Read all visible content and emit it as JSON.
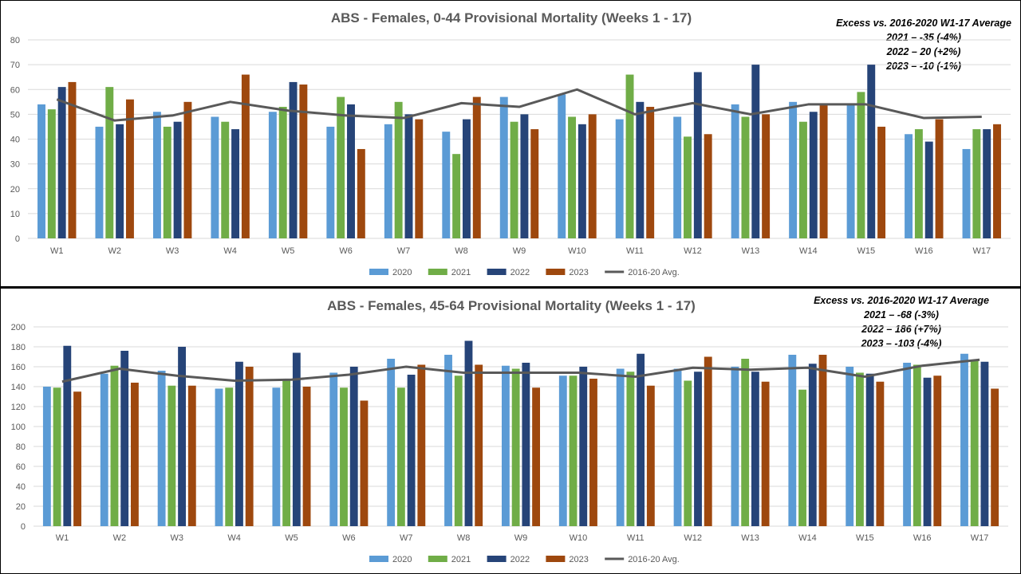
{
  "chart_data": [
    {
      "type": "bar",
      "title": "ABS - Females, 0-44 Provisional Mortality (Weeks 1 - 17)",
      "xlabel": "",
      "ylabel": "",
      "ylim": [
        0,
        80
      ],
      "yticks": [
        0,
        10,
        20,
        30,
        40,
        50,
        60,
        70,
        80
      ],
      "grid": true,
      "legend": "bottom",
      "categories": [
        "W1",
        "W2",
        "W3",
        "W4",
        "W5",
        "W6",
        "W7",
        "W8",
        "W9",
        "W10",
        "W11",
        "W12",
        "W13",
        "W14",
        "W15",
        "W16",
        "W17"
      ],
      "series": [
        {
          "name": "2020",
          "type": "bar",
          "color": "#5B9BD5",
          "values": [
            54,
            45,
            51,
            49,
            51,
            45,
            46,
            43,
            57,
            58,
            48,
            49,
            54,
            55,
            54,
            42,
            36
          ]
        },
        {
          "name": "2021",
          "type": "bar",
          "color": "#70AD47",
          "values": [
            52,
            61,
            45,
            47,
            53,
            57,
            55,
            34,
            47,
            49,
            66,
            41,
            49,
            47,
            59,
            44,
            44
          ]
        },
        {
          "name": "2022",
          "type": "bar",
          "color": "#264478",
          "values": [
            61,
            46,
            47,
            44,
            63,
            54,
            50,
            48,
            50,
            46,
            55,
            67,
            70,
            51,
            70,
            39,
            44
          ]
        },
        {
          "name": "2023",
          "type": "bar",
          "color": "#9E480E",
          "values": [
            63,
            56,
            55,
            66,
            62,
            36,
            48,
            57,
            44,
            50,
            53,
            42,
            50,
            54,
            45,
            48,
            46
          ]
        },
        {
          "name": "2016-20 Avg.",
          "type": "line",
          "color": "#595959",
          "values": [
            56,
            47.5,
            49.5,
            55,
            51.5,
            49.5,
            48.5,
            54.5,
            53,
            60,
            50,
            54.5,
            50,
            54,
            54,
            48.5,
            49
          ]
        }
      ],
      "annotations": [
        "Excess vs. 2016-2020  W1-17 Average",
        "2021 –  -35 (-4%)",
        "2022 –  20  (+2%)",
        "2023 – -10  (-1%)"
      ]
    },
    {
      "type": "bar",
      "title": "ABS - Females, 45-64 Provisional Mortality (Weeks 1 - 17)",
      "xlabel": "",
      "ylabel": "",
      "ylim": [
        0,
        200
      ],
      "yticks": [
        0,
        20,
        40,
        60,
        80,
        100,
        120,
        140,
        160,
        180,
        200
      ],
      "grid": true,
      "legend": "bottom",
      "categories": [
        "W1",
        "W2",
        "W3",
        "W4",
        "W5",
        "W6",
        "W7",
        "W8",
        "W9",
        "W10",
        "W11",
        "W12",
        "W13",
        "W14",
        "W15",
        "W16",
        "W17"
      ],
      "series": [
        {
          "name": "2020",
          "type": "bar",
          "color": "#5B9BD5",
          "values": [
            140,
            153,
            156,
            138,
            139,
            154,
            168,
            172,
            161,
            151,
            158,
            158,
            160,
            172,
            160,
            164,
            173
          ]
        },
        {
          "name": "2021",
          "type": "bar",
          "color": "#70AD47",
          "values": [
            139,
            161,
            141,
            139,
            147,
            139,
            139,
            151,
            158,
            151,
            155,
            146,
            168,
            137,
            154,
            162,
            167
          ]
        },
        {
          "name": "2022",
          "type": "bar",
          "color": "#264478",
          "values": [
            181,
            176,
            180,
            165,
            174,
            160,
            152,
            186,
            164,
            160,
            173,
            155,
            155,
            163,
            153,
            149,
            165
          ]
        },
        {
          "name": "2023",
          "type": "bar",
          "color": "#9E480E",
          "values": [
            135,
            144,
            141,
            160,
            140,
            126,
            162,
            162,
            139,
            148,
            141,
            170,
            145,
            172,
            145,
            151,
            138
          ]
        },
        {
          "name": "2016-20 Avg.",
          "type": "line",
          "color": "#595959",
          "values": [
            145,
            158,
            151,
            146,
            147,
            152,
            160,
            154,
            154,
            154,
            150,
            159,
            157,
            159,
            150,
            161,
            167
          ]
        }
      ],
      "annotations": [
        "Excess vs. 2016-2020  W1-17 Average",
        "2021 –  -68 (-3%)",
        "2022 –  186 (+7%)",
        "2023 – -103 (-4%)"
      ]
    }
  ]
}
